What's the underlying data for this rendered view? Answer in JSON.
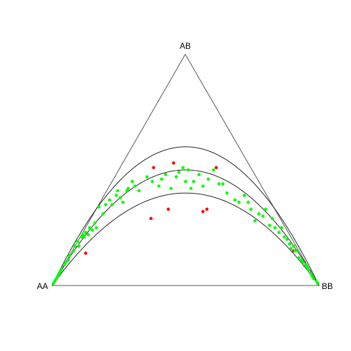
{
  "chart_data": {
    "type": "scatter",
    "subtype": "ternary-plot",
    "vertex_labels": {
      "left": "AA",
      "top": "AB",
      "right": "BB"
    },
    "curves": [
      {
        "name": "",
        "inbreeding_f": 0.2
      },
      {
        "name": "",
        "inbreeding_f": 0.0
      },
      {
        "name": "",
        "inbreeding_f": -0.2
      }
    ],
    "colors": {
      "in_range": "#00ff00",
      "outside_range": "#ff0000",
      "triangle": "#555555",
      "curve": "#222222"
    },
    "series": [
      {
        "name": "",
        "color": "#ff0000",
        "points": [
          {
            "p": 0.38,
            "ab": 0.51
          },
          {
            "p": 0.455,
            "ab": 0.53
          },
          {
            "p": 0.615,
            "ab": 0.51
          },
          {
            "p": 0.37,
            "ab": 0.29
          },
          {
            "p": 0.435,
            "ab": 0.33
          },
          {
            "p": 0.565,
            "ab": 0.32
          },
          {
            "p": 0.58,
            "ab": 0.33
          },
          {
            "p": 0.125,
            "ab": 0.14
          },
          {
            "p": 0.905,
            "ab": 0.15
          }
        ]
      },
      {
        "name": "",
        "color": "#00ff00",
        "points": [
          {
            "p": 0.005,
            "ab": 0.01
          },
          {
            "p": 0.01,
            "ab": 0.02
          },
          {
            "p": 0.015,
            "ab": 0.03
          },
          {
            "p": 0.02,
            "ab": 0.04
          },
          {
            "p": 0.025,
            "ab": 0.05
          },
          {
            "p": 0.03,
            "ab": 0.06
          },
          {
            "p": 0.035,
            "ab": 0.07
          },
          {
            "p": 0.045,
            "ab": 0.09
          },
          {
            "p": 0.05,
            "ab": 0.1
          },
          {
            "p": 0.06,
            "ab": 0.11
          },
          {
            "p": 0.065,
            "ab": 0.13
          },
          {
            "p": 0.08,
            "ab": 0.15
          },
          {
            "p": 0.085,
            "ab": 0.17
          },
          {
            "p": 0.095,
            "ab": 0.19
          },
          {
            "p": 0.1,
            "ab": 0.17
          },
          {
            "p": 0.11,
            "ab": 0.21
          },
          {
            "p": 0.115,
            "ab": 0.22
          },
          {
            "p": 0.12,
            "ab": 0.21
          },
          {
            "p": 0.125,
            "ab": 0.23
          },
          {
            "p": 0.135,
            "ab": 0.22
          },
          {
            "p": 0.14,
            "ab": 0.25
          },
          {
            "p": 0.15,
            "ab": 0.24
          },
          {
            "p": 0.16,
            "ab": 0.27
          },
          {
            "p": 0.165,
            "ab": 0.25
          },
          {
            "p": 0.175,
            "ab": 0.34
          },
          {
            "p": 0.19,
            "ab": 0.31
          },
          {
            "p": 0.2,
            "ab": 0.35
          },
          {
            "p": 0.215,
            "ab": 0.37
          },
          {
            "p": 0.225,
            "ab": 0.35
          },
          {
            "p": 0.24,
            "ab": 0.39
          },
          {
            "p": 0.245,
            "ab": 0.41
          },
          {
            "p": 0.255,
            "ab": 0.38
          },
          {
            "p": 0.265,
            "ab": 0.36
          },
          {
            "p": 0.28,
            "ab": 0.41
          },
          {
            "p": 0.285,
            "ab": 0.42
          },
          {
            "p": 0.3,
            "ab": 0.45
          },
          {
            "p": 0.31,
            "ab": 0.43
          },
          {
            "p": 0.325,
            "ab": 0.41
          },
          {
            "p": 0.355,
            "ab": 0.47
          },
          {
            "p": 0.375,
            "ab": 0.45
          },
          {
            "p": 0.4,
            "ab": 0.43
          },
          {
            "p": 0.41,
            "ab": 0.46
          },
          {
            "p": 0.425,
            "ab": 0.48
          },
          {
            "p": 0.445,
            "ab": 0.42
          },
          {
            "p": 0.465,
            "ab": 0.47
          },
          {
            "p": 0.475,
            "ab": 0.49
          },
          {
            "p": 0.49,
            "ab": 0.51
          },
          {
            "p": 0.5,
            "ab": 0.45
          },
          {
            "p": 0.51,
            "ab": 0.5
          },
          {
            "p": 0.52,
            "ab": 0.42
          },
          {
            "p": 0.53,
            "ab": 0.45
          },
          {
            "p": 0.55,
            "ab": 0.48
          },
          {
            "p": 0.565,
            "ab": 0.43
          },
          {
            "p": 0.585,
            "ab": 0.46
          },
          {
            "p": 0.605,
            "ab": 0.5
          },
          {
            "p": 0.625,
            "ab": 0.44
          },
          {
            "p": 0.64,
            "ab": 0.44
          },
          {
            "p": 0.655,
            "ab": 0.4
          },
          {
            "p": 0.685,
            "ab": 0.37
          },
          {
            "p": 0.7,
            "ab": 0.36
          },
          {
            "p": 0.72,
            "ab": 0.39
          },
          {
            "p": 0.735,
            "ab": 0.36
          },
          {
            "p": 0.745,
            "ab": 0.33
          },
          {
            "p": 0.76,
            "ab": 0.28
          },
          {
            "p": 0.775,
            "ab": 0.31
          },
          {
            "p": 0.79,
            "ab": 0.3
          },
          {
            "p": 0.8,
            "ab": 0.33
          },
          {
            "p": 0.815,
            "ab": 0.26
          },
          {
            "p": 0.825,
            "ab": 0.29
          },
          {
            "p": 0.835,
            "ab": 0.25
          },
          {
            "p": 0.85,
            "ab": 0.23
          },
          {
            "p": 0.86,
            "ab": 0.25
          },
          {
            "p": 0.87,
            "ab": 0.21
          },
          {
            "p": 0.88,
            "ab": 0.2
          },
          {
            "p": 0.89,
            "ab": 0.18
          },
          {
            "p": 0.895,
            "ab": 0.16
          },
          {
            "p": 0.905,
            "ab": 0.17
          },
          {
            "p": 0.91,
            "ab": 0.15
          },
          {
            "p": 0.92,
            "ab": 0.15
          },
          {
            "p": 0.925,
            "ab": 0.12
          },
          {
            "p": 0.935,
            "ab": 0.11
          },
          {
            "p": 0.94,
            "ab": 0.1
          },
          {
            "p": 0.95,
            "ab": 0.09
          },
          {
            "p": 0.955,
            "ab": 0.08
          },
          {
            "p": 0.96,
            "ab": 0.07
          },
          {
            "p": 0.97,
            "ab": 0.05
          },
          {
            "p": 0.975,
            "ab": 0.04
          },
          {
            "p": 0.98,
            "ab": 0.03
          },
          {
            "p": 0.99,
            "ab": 0.02
          },
          {
            "p": 0.995,
            "ab": 0.01
          }
        ]
      }
    ]
  }
}
